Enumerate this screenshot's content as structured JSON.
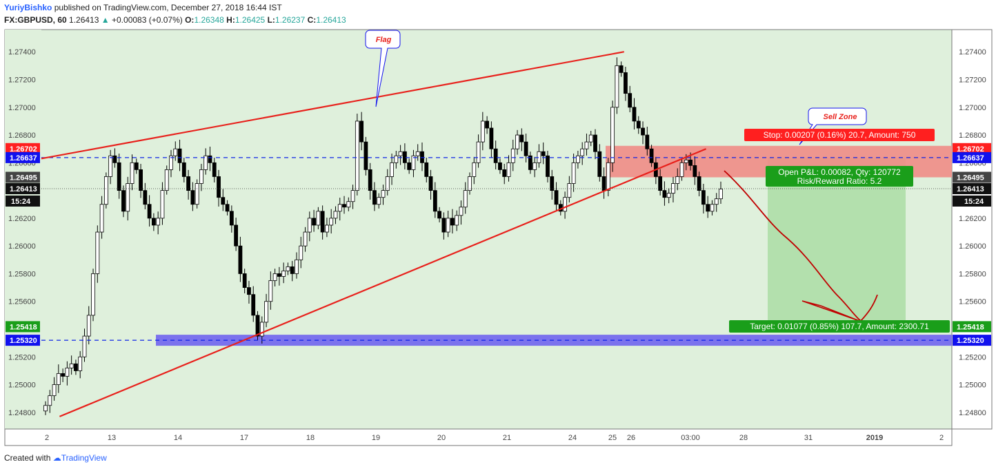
{
  "header": {
    "author": "YuriyBishko",
    "published": "published on TradingView.com, December 27, 2018 16:44 IST",
    "symbol": "FX:GBPUSD, 60",
    "last": "1.26413",
    "change": "+0.00083 (+0.07%)",
    "o_label": "O:",
    "o": "1.26348",
    "h_label": "H:",
    "h": "1.26425",
    "l_label": "L:",
    "l": "1.26237",
    "c_label": "C:",
    "c": "1.26413"
  },
  "footer": {
    "created_with": "Created with",
    "brand": "TradingView"
  },
  "annotations": {
    "flag": "Flag",
    "sell_zone": "Sell Zone",
    "stop": "Stop: 0.00207 (0.16%) 20.7, Amount: 750",
    "open_pl": "Open P&L: 0.00082, Qty: 120772",
    "risk_reward": "Risk/Reward Ratio: 5.2",
    "target": "Target: 0.01077 (0.85%) 107.7, Amount: 2300.71"
  },
  "colors": {
    "plot_bg": "#dff0dc",
    "candle": "#000000",
    "trendline": "#e8201b",
    "level_line": "#0d22e6",
    "support_zone": "#6a5cf0",
    "stop_zone": "#f08c86",
    "profit_zone": "#b3e0ad",
    "label_red": "#ff1f1f",
    "label_green": "#1a9e1a",
    "label_blue": "#1111ee"
  },
  "chart_data": {
    "type": "candlestick",
    "ylim": [
      1.2468,
      1.2756
    ],
    "y_ticks": [
      "1.24800",
      "1.25000",
      "1.25200",
      "1.25400",
      "1.25600",
      "1.25800",
      "1.26000",
      "1.26200",
      "1.26400",
      "1.26600",
      "1.26800",
      "1.27000",
      "1.27200",
      "1.27400"
    ],
    "x_ticks": [
      "2",
      "13",
      "14",
      "17",
      "18",
      "19",
      "20",
      "21",
      "24",
      "25",
      "26",
      "03:00",
      "28",
      "31",
      "2019",
      "2"
    ],
    "price_labels": {
      "stop_level": "1.26702",
      "entry_level": "1.26637",
      "upper_zone": "1.26495",
      "current": "1.26413",
      "countdown": "15:24",
      "target_level": "1.25418",
      "support_level": "1.25320"
    },
    "levels": {
      "entry": 1.26637,
      "stop": 1.26702,
      "upper": 1.26495,
      "current": 1.26413,
      "target": 1.25418,
      "support": 1.2532
    },
    "trendlines": [
      {
        "from": [
          0.0,
          1.2663
        ],
        "to": [
          0.64,
          1.274
        ]
      },
      {
        "from": [
          0.02,
          1.2477
        ],
        "to": [
          0.73,
          1.267
        ]
      }
    ],
    "closes": [
      1.2485,
      1.2492,
      1.25,
      1.2508,
      1.2506,
      1.2512,
      1.2515,
      1.251,
      1.252,
      1.2535,
      1.255,
      1.258,
      1.261,
      1.263,
      1.265,
      1.2665,
      1.266,
      1.264,
      1.2625,
      1.2645,
      1.266,
      1.2655,
      1.264,
      1.263,
      1.262,
      1.2615,
      1.262,
      1.264,
      1.2655,
      1.2665,
      1.267,
      1.266,
      1.265,
      1.264,
      1.263,
      1.2645,
      1.2655,
      1.2665,
      1.266,
      1.265,
      1.2635,
      1.263,
      1.2625,
      1.2615,
      1.26,
      1.258,
      1.257,
      1.2565,
      1.255,
      1.2535,
      1.2545,
      1.256,
      1.2575,
      1.258,
      1.2578,
      1.2582,
      1.2585,
      1.258,
      1.259,
      1.26,
      1.261,
      1.262,
      1.2615,
      1.2625,
      1.261,
      1.2615,
      1.262,
      1.2625,
      1.263,
      1.2628,
      1.2632,
      1.264,
      1.269,
      1.2675,
      1.2655,
      1.264,
      1.263,
      1.2635,
      1.264,
      1.265,
      1.266,
      1.2665,
      1.2668,
      1.266,
      1.2655,
      1.2665,
      1.2668,
      1.266,
      1.265,
      1.264,
      1.2625,
      1.262,
      1.261,
      1.262,
      1.2615,
      1.2622,
      1.2628,
      1.264,
      1.265,
      1.266,
      1.2675,
      1.269,
      1.2685,
      1.267,
      1.266,
      1.2655,
      1.265,
      1.266,
      1.267,
      1.268,
      1.2675,
      1.2665,
      1.2655,
      1.266,
      1.2668,
      1.2665,
      1.265,
      1.264,
      1.263,
      1.2625,
      1.2635,
      1.2645,
      1.266,
      1.2665,
      1.267,
      1.2675,
      1.268,
      1.2668,
      1.265,
      1.264,
      1.266,
      1.27,
      1.273,
      1.2725,
      1.271,
      1.27,
      1.269,
      1.2685,
      1.268,
      1.267,
      1.266,
      1.265,
      1.264,
      1.2635,
      1.2638,
      1.2645,
      1.265,
      1.266,
      1.2662,
      1.2658,
      1.265,
      1.264,
      1.263,
      1.2625,
      1.263,
      1.2634,
      1.2641
    ]
  }
}
